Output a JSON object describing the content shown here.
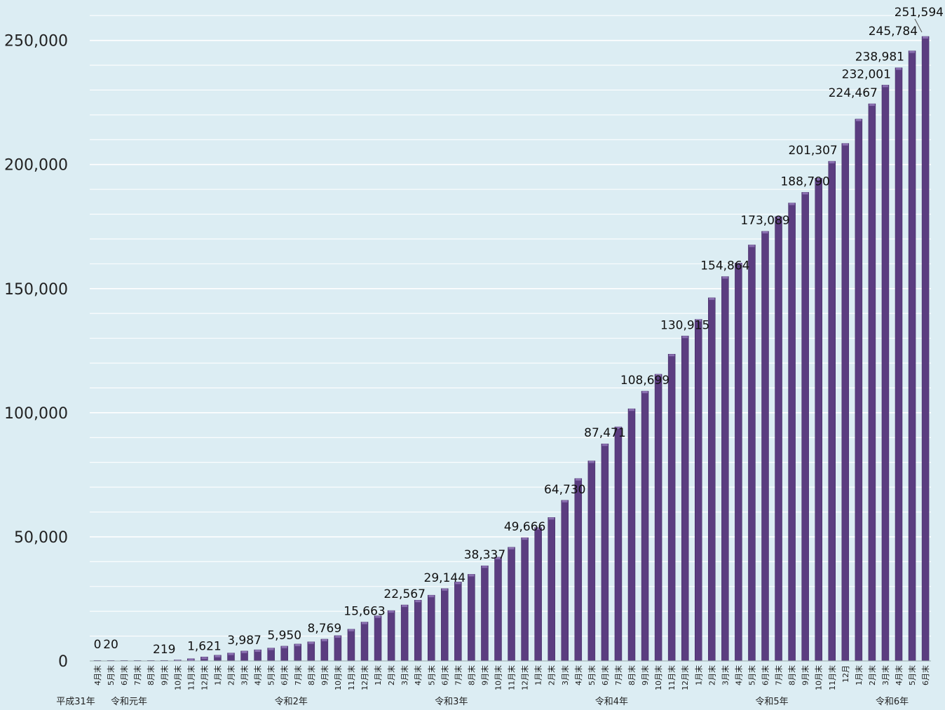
{
  "chart_data": {
    "type": "bar",
    "title": "",
    "xlabel": "",
    "ylabel": "",
    "ylim": [
      0,
      251594
    ],
    "yticks": [
      0,
      50000,
      100000,
      150000,
      200000,
      250000
    ],
    "ytick_labels": [
      "0",
      "50,000",
      "100,000",
      "150,000",
      "200,000",
      "250,000"
    ],
    "grid": true,
    "bar_color": "#5b3d80",
    "categories": [
      "4月末",
      "5月末",
      "6月末",
      "7月末",
      "8月末",
      "9月末",
      "10月末",
      "11月末",
      "12月末",
      "1月末",
      "2月末",
      "3月末",
      "4月末",
      "5月末",
      "6月末",
      "7月末",
      "8月末",
      "9月末",
      "10月末",
      "11月末",
      "12月末",
      "1月末",
      "2月末",
      "3月末",
      "4月末",
      "5月末",
      "6月末",
      "7月末",
      "8月末",
      "9月末",
      "10月末",
      "11月末",
      "12月末",
      "1月末",
      "2月末",
      "3月末",
      "4月末",
      "5月末",
      "6月末",
      "7月末",
      "8月末",
      "9月末",
      "10月末",
      "11月末",
      "12月末",
      "1月末",
      "2月末",
      "3月末",
      "4月末",
      "5月末",
      "6月末",
      "7月末",
      "8月末",
      "9月末",
      "10月末",
      "11月末",
      "12月",
      "1月末",
      "2月末",
      "3月末",
      "4月末",
      "5月末",
      "6月末"
    ],
    "values": [
      0,
      20,
      60,
      120,
      150,
      219,
      400,
      900,
      1621,
      2300,
      3200,
      3987,
      4500,
      5200,
      5950,
      6800,
      7700,
      8769,
      10200,
      12800,
      15663,
      18200,
      20300,
      22567,
      24500,
      26500,
      29144,
      31800,
      34900,
      38337,
      41800,
      45800,
      49666,
      53700,
      57800,
      64730,
      73500,
      80600,
      87471,
      94300,
      101600,
      108699,
      115500,
      123600,
      130915,
      137600,
      146300,
      154864,
      160300,
      167600,
      173089,
      179000,
      184500,
      188790,
      194500,
      201307,
      208500,
      218300,
      224467,
      232001,
      238981,
      245784,
      251594
    ],
    "data_labels": [
      {
        "index": 0,
        "text": "0"
      },
      {
        "index": 1,
        "text": "20"
      },
      {
        "index": 5,
        "text": "219"
      },
      {
        "index": 8,
        "text": "1,621"
      },
      {
        "index": 11,
        "text": "3,987"
      },
      {
        "index": 14,
        "text": "5,950"
      },
      {
        "index": 17,
        "text": "8,769"
      },
      {
        "index": 20,
        "text": "15,663"
      },
      {
        "index": 23,
        "text": "22,567"
      },
      {
        "index": 26,
        "text": "29,144"
      },
      {
        "index": 29,
        "text": "38,337"
      },
      {
        "index": 32,
        "text": "49,666"
      },
      {
        "index": 35,
        "text": "64,730"
      },
      {
        "index": 38,
        "text": "87,471"
      },
      {
        "index": 41,
        "text": "108,699"
      },
      {
        "index": 44,
        "text": "130,915"
      },
      {
        "index": 47,
        "text": "154,864"
      },
      {
        "index": 50,
        "text": "173,089"
      },
      {
        "index": 53,
        "text": "188,790"
      },
      {
        "index": 55,
        "text": "201,307"
      },
      {
        "index": 58,
        "text": "224,467"
      },
      {
        "index": 59,
        "text": "232,001"
      },
      {
        "index": 60,
        "text": "238,981"
      },
      {
        "index": 61,
        "text": "245,784"
      },
      {
        "index": 62,
        "text": "251,594"
      }
    ],
    "year_groups": [
      {
        "label": "平成31年",
        "start": 0,
        "end": 0
      },
      {
        "label": "令和元年",
        "start": 1,
        "end": 8
      },
      {
        "label": "令和2年",
        "start": 9,
        "end": 20
      },
      {
        "label": "令和3年",
        "start": 21,
        "end": 32
      },
      {
        "label": "令和4年",
        "start": 33,
        "end": 44
      },
      {
        "label": "令和5年",
        "start": 45,
        "end": 56
      },
      {
        "label": "令和6年",
        "start": 57,
        "end": 62
      }
    ]
  }
}
